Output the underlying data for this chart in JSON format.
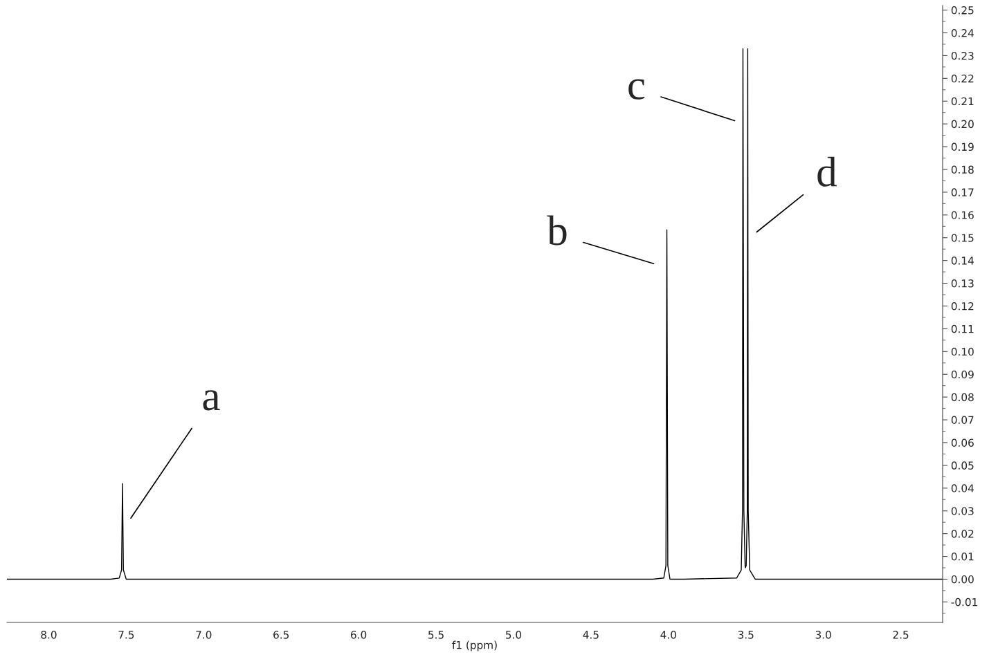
{
  "chart_data": {
    "type": "line",
    "xlabel": "f1 (ppm)",
    "series": [
      {
        "color": "#000000",
        "x": [
          8.27,
          7.6,
          7.545,
          7.53,
          7.524,
          7.518,
          7.5,
          7.45,
          4.1,
          4.03,
          4.016,
          4.01,
          4.004,
          3.99,
          3.9,
          3.56,
          3.53,
          3.522,
          3.519,
          3.513,
          3.505,
          3.503,
          3.498,
          3.491,
          3.488,
          3.485,
          3.475,
          3.44,
          2.23
        ],
        "values": [
          0.0,
          0.0,
          0.0005,
          0.004,
          0.042,
          0.004,
          0.0,
          0.0,
          0.0,
          0.0005,
          0.006,
          0.1535,
          0.006,
          0.0,
          0.0,
          0.0005,
          0.004,
          0.03,
          0.233,
          0.03,
          0.006,
          0.005,
          0.006,
          0.03,
          0.233,
          0.03,
          0.004,
          0.0,
          0.0
        ]
      }
    ],
    "annotations": [
      {
        "text": "a",
        "x": 7.524,
        "y": 0.042
      },
      {
        "text": "b",
        "x": 4.01,
        "y": 0.1535
      },
      {
        "text": "c",
        "x": 3.519,
        "y": 0.233
      },
      {
        "text": "d",
        "x": 3.488,
        "y": 0.1525
      }
    ],
    "xlim": [
      8.27,
      2.23
    ],
    "ylim": [
      -0.019,
      0.252
    ],
    "xticks": [
      {
        "value": 8,
        "label": "8.0"
      },
      {
        "value": 7.5,
        "label": "7.5"
      },
      {
        "value": 7,
        "label": "7.0"
      },
      {
        "value": 6.5,
        "label": "6.5"
      },
      {
        "value": 6,
        "label": "6.0"
      },
      {
        "value": 5.5,
        "label": "5.5"
      },
      {
        "value": 5,
        "label": "5.0"
      },
      {
        "value": 4.5,
        "label": "4.5"
      },
      {
        "value": 4,
        "label": "4.0"
      },
      {
        "value": 3.5,
        "label": "3.5"
      },
      {
        "value": 3,
        "label": "3.0"
      },
      {
        "value": 2.5,
        "label": "2.5"
      }
    ],
    "yticks": [
      {
        "value": -0.01,
        "label": "-0.01"
      },
      {
        "value": 0,
        "label": "0.00"
      },
      0.01,
      0.02,
      0.03,
      0.04,
      0.05,
      0.06,
      0.07,
      0.08,
      0.09,
      {
        "value": 0.1,
        "label": "0.10"
      },
      0.11,
      0.12,
      0.13,
      0.14,
      0.15,
      0.16,
      0.17,
      0.18,
      0.19,
      {
        "value": 0.2,
        "label": "0.20"
      },
      0.21,
      0.22,
      0.23,
      0.24,
      0.25
    ],
    "grid": false,
    "legend": false,
    "marker": "none",
    "line_style": "solid"
  }
}
